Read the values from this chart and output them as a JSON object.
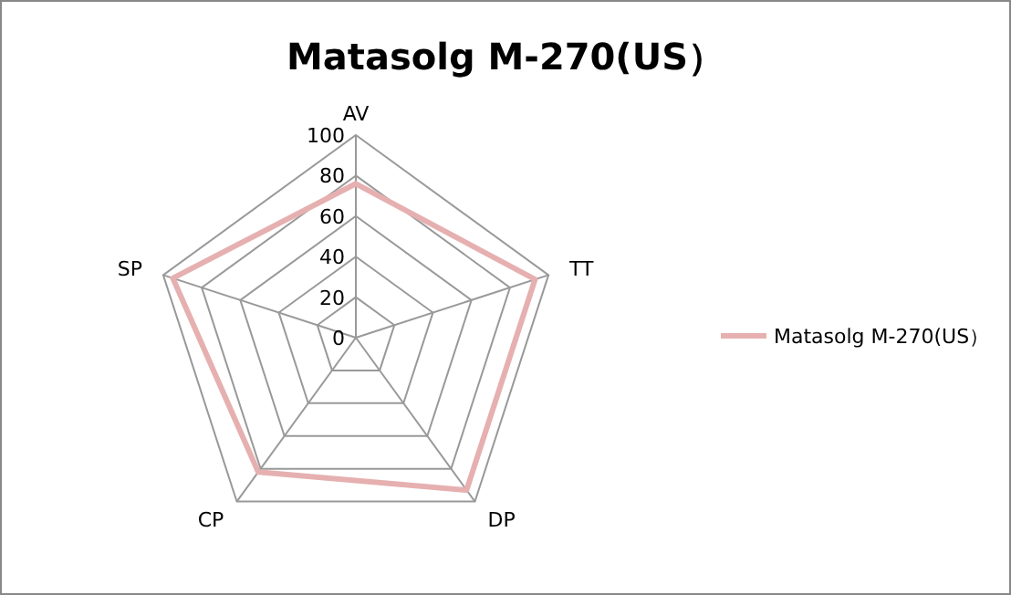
{
  "chart_data": {
    "type": "radar",
    "title": "Matasolg M-270(US）",
    "categories": [
      "AV",
      "TT",
      "DP",
      "CP",
      "SP"
    ],
    "series": [
      {
        "name": "Matasolg M-270(US）",
        "color": "#e6b0b0",
        "values": [
          76,
          93,
          93,
          82,
          95
        ]
      }
    ],
    "ylim": [
      0,
      100
    ],
    "yticks": [
      0,
      20,
      40,
      60,
      80,
      100
    ],
    "grid": true,
    "legend": "right"
  }
}
